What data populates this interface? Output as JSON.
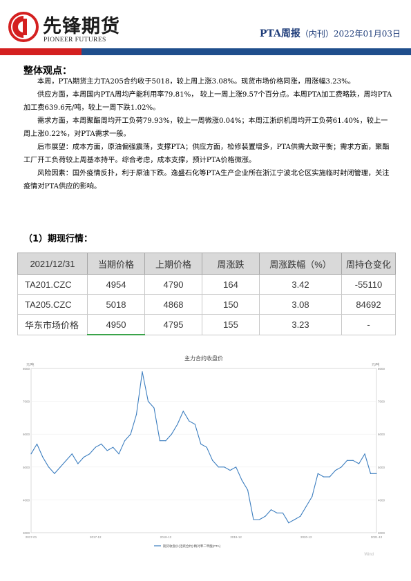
{
  "header": {
    "logo_cn": "先锋期货",
    "logo_en": "PIONEER FUTURES",
    "report_name": "PTA周报",
    "edition": "（内刊）",
    "date": "2022年01月03日"
  },
  "overview": {
    "title": "整体观点：",
    "paragraphs": [
      "本周，PTA期货主力TA205合约收于5018，较上周上涨3.08%。现货市场价格同涨，周涨幅3.23%。",
      "供应方面，本周国内PTA周均产能利用率79.81%， 较上一周上涨9.57个百分点。本周PTA加工费略跌，周均PTA加工费639.6元/吨，较上一周下跌1.02%。",
      "需求方面，本周聚酯周均开工负荷79.93%，较上一周微涨0.04%；本周江浙织机周均开工负荷61.40%，较上一周上涨0.22%，对PTA需求一般。",
      "后市展望：成本方面，原油偏强震荡，支撑PTA；供应方面，检修装置增多，PTA供需大致平衡；需求方面，聚酯工厂开工负荷较上周基本持平。综合考虑，成本支撑，预计PTA价格微涨。",
      "风险因素：国外疫情反扑，利于原油下跌。逸盛石化等PTA生产企业所在浙江宁波北仑区实施临时封闭管理，关注疫情对PTA供应的影响。"
    ]
  },
  "section1": {
    "title": "（1）期现行情：",
    "table": {
      "headers": [
        "2021/12/31",
        "当期价格",
        "上期价格",
        "周涨跌",
        "周涨跌幅（%）",
        "周持仓变化"
      ],
      "rows": [
        [
          "TA201.CZC",
          "4954",
          "4790",
          "164",
          "3.42",
          "-55110"
        ],
        [
          "TA205.CZC",
          "5018",
          "4868",
          "150",
          "3.08",
          "84692"
        ],
        [
          "华东市场价格",
          "4950",
          "4795",
          "155",
          "3.23",
          "-"
        ]
      ]
    }
  },
  "colors": {
    "brand_red": "#d42020",
    "brand_blue": "#1f4e8c",
    "line": "#3b7dbf"
  },
  "chart_data": {
    "type": "line",
    "title": "主力合约收盘价",
    "ylabel_left": "元/吨",
    "ylabel_right": "元/吨",
    "ylim": [
      3000,
      8000
    ],
    "yticks": [
      3000,
      4000,
      5000,
      6000,
      7000,
      8000
    ],
    "xticks": [
      "2017-01",
      "2017-12",
      "2018-12",
      "2019-12",
      "2020-12",
      "2021-12"
    ],
    "legend": "期货收盘价(活跃合约):精对苯二甲酸(PTA)",
    "watermark": "Wind",
    "series": [
      {
        "name": "期货收盘价(活跃合约):精对苯二甲酸(PTA)",
        "x": [
          "2017-01",
          "2017-02",
          "2017-03",
          "2017-04",
          "2017-05",
          "2017-06",
          "2017-07",
          "2017-08",
          "2017-09",
          "2017-10",
          "2017-11",
          "2017-12",
          "2018-01",
          "2018-02",
          "2018-03",
          "2018-04",
          "2018-05",
          "2018-06",
          "2018-07",
          "2018-08",
          "2018-09",
          "2018-10",
          "2018-11",
          "2018-12",
          "2019-01",
          "2019-02",
          "2019-03",
          "2019-04",
          "2019-05",
          "2019-06",
          "2019-07",
          "2019-08",
          "2019-09",
          "2019-10",
          "2019-11",
          "2019-12",
          "2020-01",
          "2020-02",
          "2020-03",
          "2020-04",
          "2020-05",
          "2020-06",
          "2020-07",
          "2020-08",
          "2020-09",
          "2020-10",
          "2020-11",
          "2020-12",
          "2021-01",
          "2021-02",
          "2021-03",
          "2021-04",
          "2021-05",
          "2021-06",
          "2021-07",
          "2021-08",
          "2021-09",
          "2021-10",
          "2021-11",
          "2021-12"
        ],
        "values": [
          5400,
          5700,
          5300,
          5000,
          4800,
          5000,
          5200,
          5400,
          5100,
          5300,
          5400,
          5600,
          5700,
          5500,
          5600,
          5400,
          5800,
          6000,
          6600,
          7900,
          7000,
          6800,
          5800,
          5800,
          6000,
          6300,
          6700,
          6400,
          6300,
          5700,
          5600,
          5200,
          5000,
          5000,
          4900,
          5000,
          4600,
          4300,
          3400,
          3400,
          3500,
          3700,
          3600,
          3600,
          3300,
          3400,
          3500,
          3800,
          4100,
          4800,
          4700,
          4700,
          4900,
          5000,
          5200,
          5200,
          5100,
          5400,
          4800,
          4800
        ]
      }
    ]
  }
}
